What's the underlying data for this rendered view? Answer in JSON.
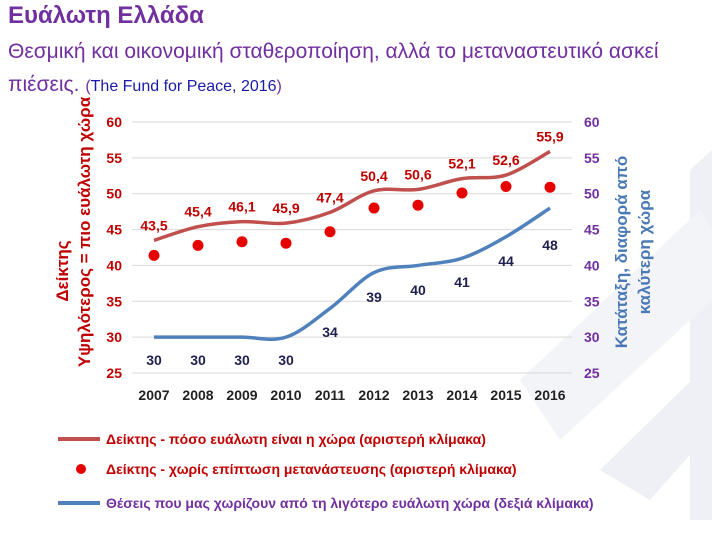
{
  "header": {
    "title": "Ευάλωτη Ελλάδα",
    "subtitle": "Θεσμική και οικονομική σταθεροποίηση, αλλά το μεταναστευτικό ασκεί πιέσεις.",
    "source_open": "(",
    "source": "The Fund for Peace, 2016",
    "source_close": ")"
  },
  "colors": {
    "title": "#7030a0",
    "index_line": "#c0504d",
    "index_points": "#e60000",
    "rank_line": "#4f81bd",
    "left_axis": "#c00000",
    "right_axis": "#7030a0"
  },
  "chart_data": {
    "type": "line",
    "x": [
      2007,
      2008,
      2009,
      2010,
      2011,
      2012,
      2013,
      2014,
      2015,
      2016
    ],
    "left_axis": {
      "label_line1": "Δείκτης",
      "label_line2": "Υψηλότερος = πιο ευάλωτη χώρα",
      "ylim": [
        25,
        60
      ],
      "ticks": [
        25,
        30,
        35,
        40,
        45,
        50,
        55,
        60
      ]
    },
    "right_axis": {
      "label_line1": "Κατάταξη, διαφορά από",
      "label_line2": "καλύτερη χώρα",
      "ylim": [
        25,
        60
      ],
      "ticks": [
        25,
        30,
        35,
        40,
        45,
        50,
        55,
        60
      ]
    },
    "series": [
      {
        "name": "Δείκτης - πόσο ευάλωτη είναι η χώρα (αριστερή κλίμακα)",
        "kind": "line",
        "axis": "left",
        "values": [
          43.5,
          45.4,
          46.1,
          45.9,
          47.4,
          50.4,
          50.6,
          52.1,
          52.6,
          55.9
        ],
        "labels": [
          "43,5",
          "45,4",
          "46,1",
          "45,9",
          "47,4",
          "50,4",
          "50,6",
          "52,1",
          "52,6",
          "55,9"
        ]
      },
      {
        "name": "Δείκτης -  χωρίς επίπτωση μετανάστευσης (αριστερή κλίμακα)",
        "kind": "markers",
        "axis": "left",
        "values": [
          41.4,
          42.8,
          43.3,
          43.1,
          44.7,
          48.0,
          48.4,
          50.1,
          51.0,
          50.9
        ]
      },
      {
        "name": "Θέσεις που μας χωρίζουν από τη λιγότερο ευάλωτη χώρα (δεξιά κλίμακα)",
        "kind": "line",
        "axis": "right",
        "values": [
          30,
          30,
          30,
          30,
          34,
          39,
          40,
          41,
          44,
          48
        ],
        "labels": [
          "30",
          "30",
          "30",
          "30",
          "34",
          "39",
          "40",
          "41",
          "44",
          "48"
        ]
      }
    ]
  }
}
